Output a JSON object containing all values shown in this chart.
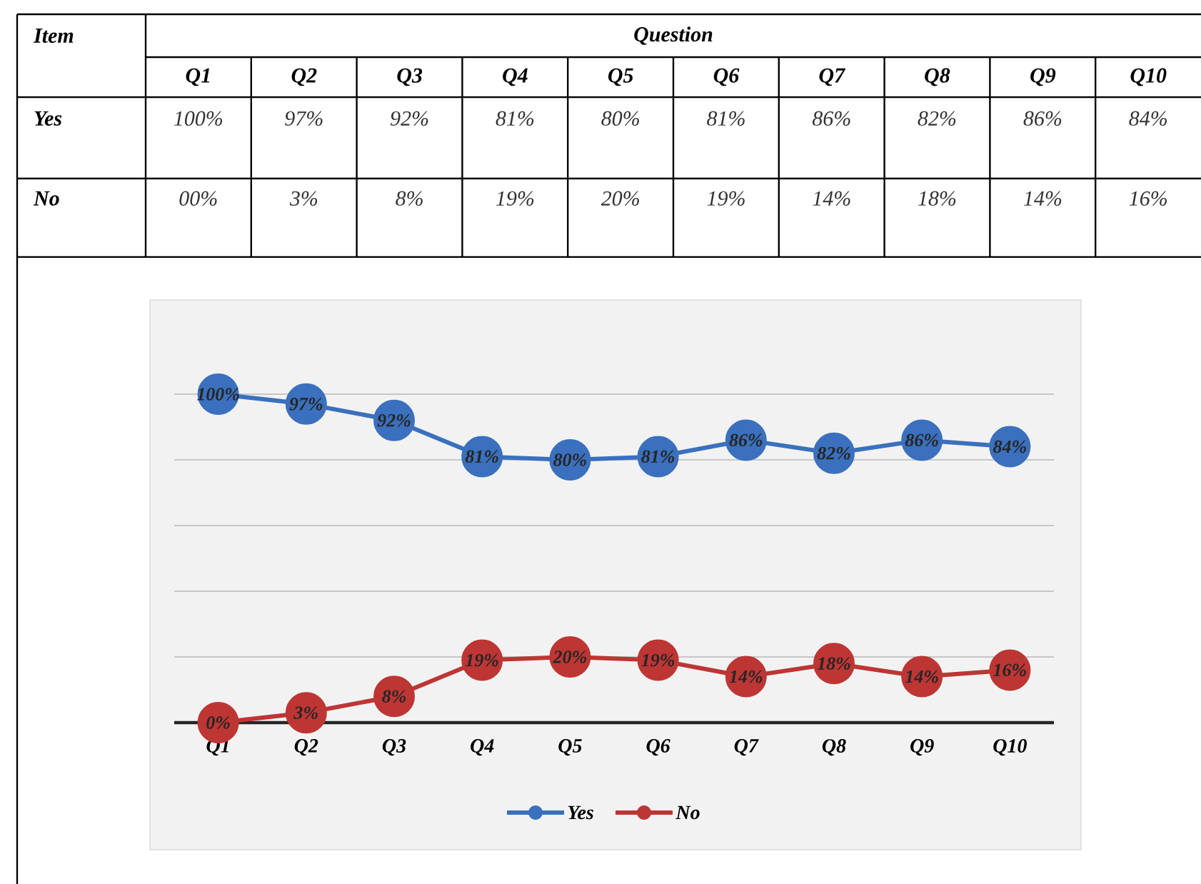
{
  "chart_data": {
    "type": "line",
    "categories": [
      "Q1",
      "Q2",
      "Q3",
      "Q4",
      "Q5",
      "Q6",
      "Q7",
      "Q8",
      "Q9",
      "Q10"
    ],
    "series": [
      {
        "name": "Yes",
        "color": "#3a70bd",
        "values": [
          100,
          97,
          92,
          81,
          80,
          81,
          86,
          82,
          86,
          84
        ],
        "value_labels": [
          "100%",
          "97%",
          "92%",
          "81%",
          "80%",
          "81%",
          "86%",
          "82%",
          "86%",
          "84%"
        ]
      },
      {
        "name": "No",
        "color": "#bd3634",
        "values": [
          0,
          3,
          8,
          19,
          20,
          19,
          14,
          18,
          14,
          16
        ],
        "value_labels": [
          "0%",
          "3%",
          "8%",
          "19%",
          "20%",
          "19%",
          "14%",
          "18%",
          "14%",
          "16%"
        ]
      }
    ],
    "tick_labels": "x",
    "grid": "y",
    "marker": "circle",
    "line_style": "solid",
    "legend": "bottom",
    "annotations": [
      "Item",
      "Question",
      "00%"
    ]
  }
}
